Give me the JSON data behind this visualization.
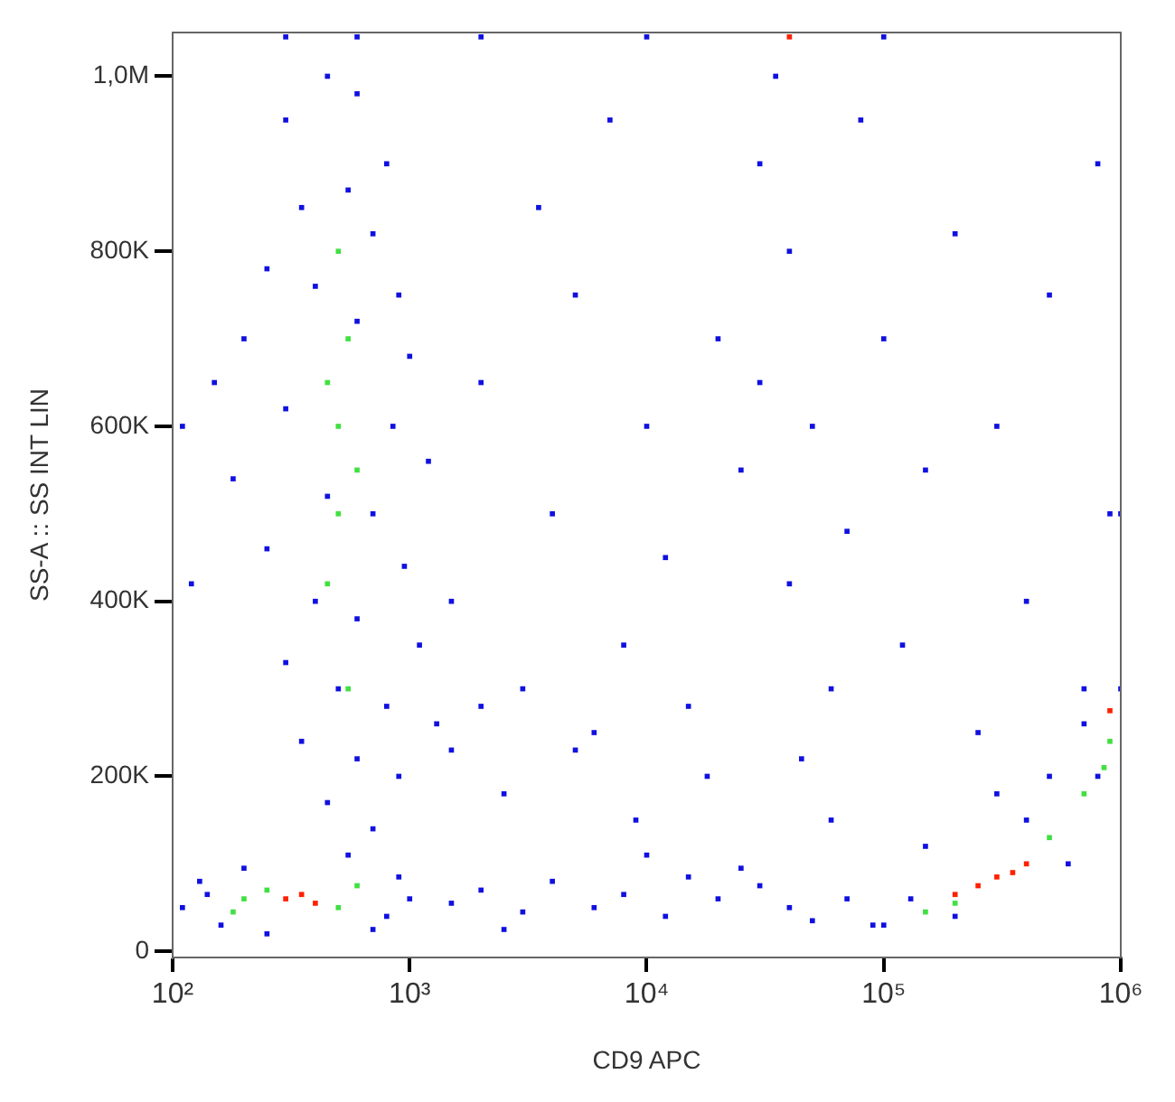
{
  "chart_data": {
    "type": "scatter",
    "xlabel": "CD9 APC",
    "ylabel": "SS-A :: SS INT LIN",
    "log": "x",
    "marker": "square",
    "grid": false,
    "legend": false,
    "xlim": [
      100,
      1000000
    ],
    "xticks": [
      {
        "value": 100,
        "label": "10²"
      },
      {
        "value": 1000,
        "label": "10³"
      },
      {
        "value": 10000,
        "label": "10⁴"
      },
      {
        "value": 100000,
        "label": "10⁵"
      },
      {
        "value": 1000000,
        "label": "10⁶"
      }
    ],
    "ylim": [
      -7000,
      1050000
    ],
    "yticks": [
      0,
      {
        "value": 200000,
        "label": "200K"
      },
      {
        "value": 400000,
        "label": "400K"
      },
      {
        "value": 600000,
        "label": "600K"
      },
      {
        "value": 800000,
        "label": "800K"
      },
      {
        "value": 1000000,
        "label": "1,0M"
      }
    ],
    "series": [
      {
        "color": "#1010e0",
        "x": [
          300,
          450,
          600,
          800,
          350,
          550,
          700,
          250,
          400,
          900,
          200,
          600,
          1000,
          150,
          300,
          850,
          1200,
          180,
          450,
          700,
          250,
          950,
          400,
          600,
          1100,
          300,
          500,
          800,
          1300,
          350,
          600,
          900,
          450,
          700,
          550,
          1500,
          2000,
          120,
          110,
          110,
          130,
          160,
          200,
          250,
          800,
          900,
          1000,
          700,
          140,
          1500,
          2000,
          3000,
          4000,
          6000,
          8000,
          12000,
          15000,
          20000,
          30000,
          40000,
          50000,
          70000,
          90000,
          2500,
          25000,
          10000,
          1500,
          2000,
          3000,
          4000,
          5000,
          6000,
          8000,
          10000,
          12000,
          15000,
          20000,
          25000,
          30000,
          30000,
          35000,
          40000,
          40000,
          50000,
          60000,
          70000,
          80000,
          100000,
          120000,
          150000,
          200000,
          250000,
          300000,
          400000,
          500000,
          700000,
          800000,
          900000,
          18000,
          45000,
          3500,
          7000,
          2500,
          5000,
          9000,
          60000,
          300000,
          500000,
          100000,
          150000,
          200000,
          400000,
          600000,
          800000,
          1000000,
          1000000,
          700000,
          130000,
          300,
          600,
          2000,
          10000,
          100000
        ],
        "values": [
          950000,
          1000000,
          980000,
          900000,
          850000,
          870000,
          820000,
          780000,
          760000,
          750000,
          700000,
          720000,
          680000,
          650000,
          620000,
          600000,
          560000,
          540000,
          520000,
          500000,
          460000,
          440000,
          400000,
          380000,
          350000,
          330000,
          300000,
          280000,
          260000,
          240000,
          220000,
          200000,
          170000,
          140000,
          110000,
          230000,
          280000,
          420000,
          600000,
          50000,
          80000,
          30000,
          95000,
          20000,
          40000,
          85000,
          60000,
          25000,
          65000,
          55000,
          70000,
          45000,
          80000,
          50000,
          65000,
          40000,
          85000,
          60000,
          75000,
          50000,
          35000,
          60000,
          30000,
          25000,
          95000,
          110000,
          400000,
          650000,
          300000,
          500000,
          750000,
          250000,
          350000,
          600000,
          450000,
          280000,
          700000,
          550000,
          650000,
          900000,
          1000000,
          800000,
          420000,
          600000,
          300000,
          480000,
          950000,
          700000,
          350000,
          550000,
          820000,
          250000,
          600000,
          400000,
          750000,
          300000,
          900000,
          500000,
          200000,
          220000,
          850000,
          950000,
          180000,
          230000,
          150000,
          150000,
          180000,
          200000,
          30000,
          120000,
          40000,
          150000,
          100000,
          200000,
          300000,
          500000,
          260000,
          60000,
          1045000,
          1045000,
          1045000,
          1045000,
          1045000
        ]
      },
      {
        "color": "#40e040",
        "x": [
          500,
          550,
          450,
          500,
          600,
          500,
          450,
          550,
          200,
          250,
          500,
          600,
          180,
          150000,
          500000,
          700000,
          850000,
          900000,
          200000
        ],
        "values": [
          600000,
          700000,
          650000,
          500000,
          550000,
          800000,
          420000,
          300000,
          60000,
          70000,
          50000,
          75000,
          45000,
          45000,
          130000,
          180000,
          210000,
          240000,
          55000
        ]
      },
      {
        "color": "#ff2000",
        "x": [
          350,
          400,
          300,
          250000,
          300000,
          350000,
          400000,
          200000,
          900000,
          40000
        ],
        "values": [
          65000,
          55000,
          60000,
          75000,
          85000,
          90000,
          100000,
          65000,
          275000,
          1045000
        ]
      }
    ]
  }
}
